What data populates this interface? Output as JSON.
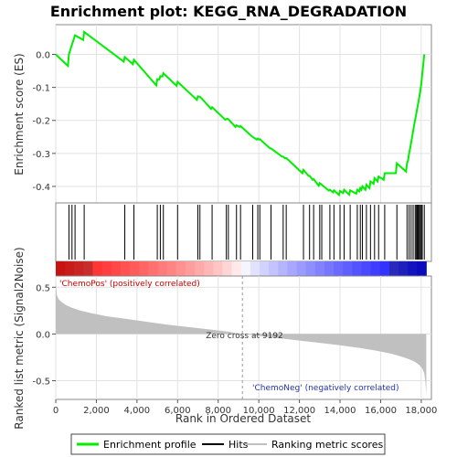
{
  "chart_data": {
    "type": "line",
    "title": "Enrichment plot: KEGG_RNA_DEGRADATION",
    "xlabel": "Rank in Ordered Dataset",
    "es_ylabel": "Enrichment score (ES)",
    "metric_ylabel": "Ranked list metric (Signal2Noise)",
    "xlim": [
      0,
      18500
    ],
    "x_ticks": [
      0,
      2000,
      4000,
      6000,
      8000,
      10000,
      12000,
      14000,
      16000,
      18000
    ],
    "x_tick_labels": [
      "0",
      "2,000",
      "4,000",
      "6,000",
      "8,000",
      "10,000",
      "12,000",
      "14,000",
      "16,000",
      "18,000"
    ],
    "es_ylim": [
      -0.45,
      0.09
    ],
    "es_ticks": [
      0.0,
      -0.1,
      -0.2,
      -0.3,
      -0.4
    ],
    "es_tick_labels": [
      "0.0",
      "-0.1",
      "-0.2",
      "-0.3",
      "-0.4"
    ],
    "metric_ylim": [
      -0.7,
      0.62
    ],
    "metric_ticks": [
      0.5,
      0.0,
      -0.5
    ],
    "metric_tick_labels": [
      "0.5",
      "0.0",
      "-0.5"
    ],
    "grid": true,
    "colors": {
      "enrichment": "#00ee00",
      "hits": "#000000",
      "metric": "#c0c0c0",
      "pos_label": "#cc0000",
      "neg_label": "#2233aa"
    },
    "hits": [
      650,
      800,
      950,
      1400,
      3400,
      3850,
      5000,
      5150,
      5300,
      6000,
      7000,
      7100,
      7700,
      8400,
      8500,
      8900,
      9100,
      9700,
      9950,
      10050,
      10600,
      11200,
      11350,
      12200,
      12500,
      12700,
      13000,
      13100,
      13500,
      13700,
      14000,
      14200,
      14500,
      14850,
      15000,
      15100,
      15300,
      15500,
      15700,
      15900,
      16200,
      16800,
      17300,
      17400,
      17500,
      17600,
      17700,
      17750,
      17800,
      17850,
      17900,
      17950,
      18000,
      18050,
      18150
    ],
    "enrichment_series": {
      "name": "Enrichment profile",
      "x": [
        0,
        600,
        650,
        800,
        950,
        1350,
        1400,
        3350,
        3400,
        3800,
        3850,
        4950,
        5000,
        5100,
        5150,
        5250,
        5300,
        5950,
        6000,
        6950,
        7000,
        7050,
        7100,
        7650,
        7700,
        8350,
        8400,
        8450,
        8500,
        8850,
        8900,
        9050,
        9100,
        9650,
        9700,
        9900,
        9950,
        10000,
        10050,
        10550,
        10600,
        11150,
        11200,
        11300,
        11350,
        12150,
        12200,
        12450,
        12500,
        12650,
        12700,
        12950,
        13000,
        13050,
        13100,
        13450,
        13500,
        13650,
        13700,
        13950,
        14000,
        14150,
        14200,
        14450,
        14500,
        14800,
        14850,
        14950,
        15000,
        15050,
        15100,
        15250,
        15300,
        15450,
        15500,
        15650,
        15700,
        15850,
        15900,
        16150,
        16200,
        16750,
        16800,
        17250,
        17300,
        17350,
        17400,
        17450,
        17500,
        17550,
        17600,
        17650,
        17700,
        17750,
        17800,
        17850,
        17900,
        17950,
        18000,
        18050,
        18150
      ],
      "y": [
        0.0,
        -0.035,
        0.0,
        0.03,
        0.058,
        0.044,
        0.068,
        -0.022,
        -0.008,
        -0.03,
        -0.016,
        -0.094,
        -0.075,
        -0.076,
        -0.066,
        -0.067,
        -0.057,
        -0.095,
        -0.083,
        -0.138,
        -0.127,
        -0.128,
        -0.128,
        -0.165,
        -0.16,
        -0.198,
        -0.196,
        -0.195,
        -0.196,
        -0.22,
        -0.215,
        -0.22,
        -0.217,
        -0.248,
        -0.25,
        -0.258,
        -0.255,
        -0.258,
        -0.257,
        -0.285,
        -0.285,
        -0.31,
        -0.31,
        -0.315,
        -0.314,
        -0.36,
        -0.35,
        -0.368,
        -0.368,
        -0.38,
        -0.378,
        -0.398,
        -0.39,
        -0.392,
        -0.395,
        -0.413,
        -0.41,
        -0.418,
        -0.412,
        -0.426,
        -0.414,
        -0.42,
        -0.41,
        -0.425,
        -0.412,
        -0.422,
        -0.41,
        -0.415,
        -0.405,
        -0.41,
        -0.4,
        -0.41,
        -0.395,
        -0.405,
        -0.385,
        -0.392,
        -0.375,
        -0.385,
        -0.37,
        -0.38,
        -0.36,
        -0.36,
        -0.33,
        -0.355,
        -0.33,
        -0.32,
        -0.3,
        -0.285,
        -0.268,
        -0.25,
        -0.232,
        -0.215,
        -0.198,
        -0.182,
        -0.165,
        -0.148,
        -0.13,
        -0.112,
        -0.09,
        -0.06,
        0.0
      ]
    },
    "metric_series": {
      "x": [
        0,
        50,
        150,
        300,
        500,
        800,
        1200,
        1800,
        2500,
        3500,
        4500,
        5500,
        6500,
        7500,
        8500,
        9192,
        10000,
        11000,
        12000,
        13000,
        14000,
        15000,
        15800,
        16500,
        17000,
        17400,
        17700,
        17900,
        18050,
        18150,
        18200,
        18250
      ],
      "y": [
        0.56,
        0.42,
        0.37,
        0.34,
        0.31,
        0.28,
        0.25,
        0.22,
        0.19,
        0.16,
        0.13,
        0.1,
        0.075,
        0.05,
        0.025,
        0.0,
        -0.02,
        -0.045,
        -0.07,
        -0.095,
        -0.12,
        -0.15,
        -0.18,
        -0.21,
        -0.24,
        -0.27,
        -0.3,
        -0.33,
        -0.37,
        -0.42,
        -0.5,
        -0.66
      ]
    },
    "annotations": {
      "pos": "'ChemoPos' (positively correlated)",
      "neg": "'ChemoNeg' (negatively correlated)",
      "zero_cross": "Zero cross at 9192",
      "zero_cross_x": 9192
    },
    "legend": {
      "placement": "bottom",
      "items": [
        {
          "label": "Enrichment profile",
          "color": "#00ee00",
          "kind": "line"
        },
        {
          "label": "Hits",
          "color": "#000000",
          "kind": "line"
        },
        {
          "label": "Ranking metric scores",
          "color": "#c0c0c0",
          "kind": "line"
        }
      ]
    }
  }
}
